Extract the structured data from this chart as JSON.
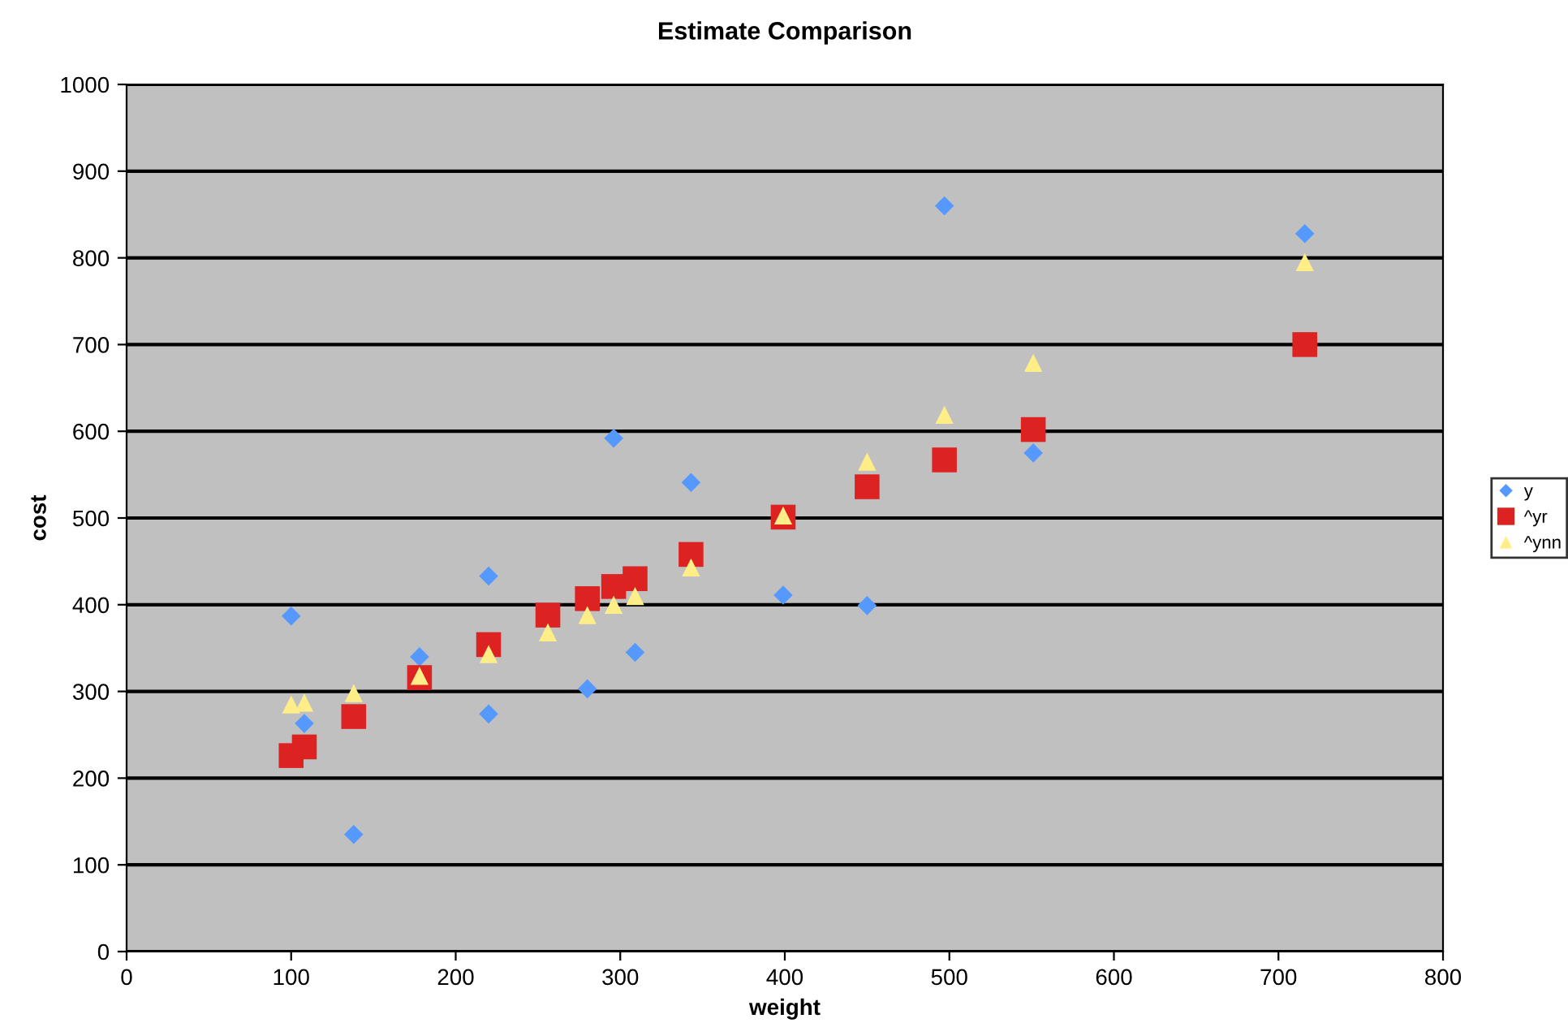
{
  "chart_data": {
    "type": "scatter",
    "title": "Estimate Comparison",
    "xlabel": "weight",
    "ylabel": "cost",
    "xlim": [
      0,
      800
    ],
    "xticks": [
      0,
      100,
      200,
      300,
      400,
      500,
      600,
      700,
      800
    ],
    "ylim": [
      0,
      1000
    ],
    "yticks": [
      0,
      100,
      200,
      300,
      400,
      500,
      600,
      700,
      800,
      900,
      1000
    ],
    "grid": "y",
    "legend": "right",
    "series": [
      {
        "name": "y",
        "color": "#5599ff",
        "marker": "diamond",
        "x": [
          100,
          108,
          138,
          178,
          220,
          220,
          280,
          296,
          309,
          343,
          399,
          450,
          497,
          551,
          716
        ],
        "values": [
          387,
          263,
          135,
          340,
          433,
          274,
          303,
          592,
          345,
          541,
          411,
          399,
          860,
          575,
          828
        ]
      },
      {
        "name": "^yr",
        "color": "#dd2222",
        "marker": "square",
        "x": [
          100,
          108,
          138,
          178,
          220,
          256,
          280,
          296,
          309,
          343,
          399,
          450,
          497,
          551,
          716
        ],
        "values": [
          226,
          236,
          271,
          316,
          354,
          388,
          407,
          421,
          430,
          458,
          501,
          536,
          567,
          602,
          700
        ]
      },
      {
        "name": "^ynn",
        "color": "#ffee88",
        "marker": "triangle",
        "x": [
          100,
          108,
          138,
          178,
          220,
          256,
          280,
          296,
          309,
          343,
          399,
          450,
          497,
          551,
          716
        ],
        "values": [
          285,
          287,
          298,
          318,
          343,
          368,
          388,
          400,
          410,
          443,
          503,
          565,
          619,
          679,
          795
        ]
      }
    ]
  }
}
